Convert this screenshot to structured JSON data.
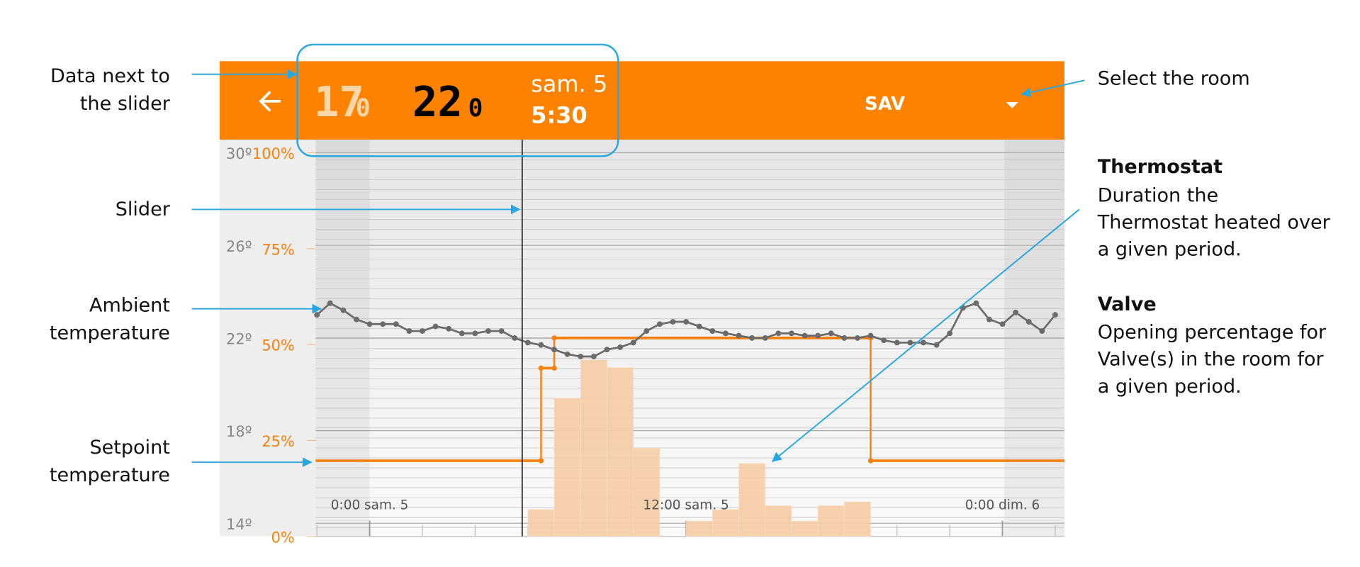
{
  "annotations_left": [
    {
      "lines": [
        "Data next to",
        "the slider"
      ]
    },
    {
      "lines": [
        "Slider"
      ]
    },
    {
      "lines": [
        "Ambient",
        "temperature"
      ]
    },
    {
      "lines": [
        "Setpoint",
        "temperature"
      ]
    }
  ],
  "annotations_right": {
    "select_room": "Select the room",
    "thermostat": {
      "title": "Thermostat",
      "lines": [
        "Duration the",
        "Thermostat heated over",
        "a given period."
      ]
    },
    "valve": {
      "title": "Valve",
      "lines": [
        "Opening percentage for",
        "Valve(s) in the room for",
        "a given period."
      ]
    }
  },
  "header": {
    "setpoint_int": "17",
    "setpoint_dec": "0",
    "ambient_int": "22",
    "ambient_dec": "0",
    "day": "sam. 5",
    "time": "5:30",
    "room": "SAV"
  },
  "chart": {
    "xlim": [
      -2.05,
      26.35
    ],
    "xticks": [
      {
        "value": 0,
        "label": "0:00 sam. 5"
      },
      {
        "value": 12,
        "label": "12:00 sam. 5"
      },
      {
        "value": 24,
        "label": "0:00 dim. 6"
      }
    ],
    "temp_lim": [
      14,
      30
    ],
    "temp_ticks": [
      {
        "value": 30,
        "label": "30º"
      },
      {
        "value": 26,
        "label": "26º"
      },
      {
        "value": 22,
        "label": "22º"
      },
      {
        "value": 18,
        "label": "18º"
      },
      {
        "value": 14,
        "label": "14º"
      }
    ],
    "percent_lim": [
      0,
      100
    ],
    "percent_ticks": [
      {
        "value": 100,
        "label": "100%"
      },
      {
        "value": 75,
        "label": "75%"
      },
      {
        "value": 50,
        "label": "50%"
      },
      {
        "value": 25,
        "label": "25%"
      },
      {
        "value": 0,
        "label": "0%"
      }
    ],
    "ambient": {
      "color": "#6b6b6b",
      "x": [
        -2,
        -1.5,
        -1,
        -0.5,
        0,
        0.5,
        1,
        1.5,
        2,
        2.5,
        3,
        3.5,
        4,
        4.5,
        5,
        5.5,
        6,
        6.5,
        7,
        7.5,
        8,
        8.5,
        9,
        9.5,
        10,
        10.5,
        11,
        11.5,
        12,
        12.5,
        13,
        13.5,
        14,
        14.5,
        15,
        15.5,
        16,
        16.5,
        17,
        17.5,
        18,
        18.5,
        19,
        19.5,
        20,
        20.5,
        21,
        21.5,
        22,
        22.5,
        23,
        23.5,
        24,
        24.5,
        25,
        25.5,
        26
      ],
      "values": [
        23.0,
        23.5,
        23.2,
        22.8,
        22.6,
        22.6,
        22.6,
        22.3,
        22.3,
        22.5,
        22.4,
        22.2,
        22.2,
        22.3,
        22.3,
        22.0,
        21.8,
        21.7,
        21.5,
        21.3,
        21.2,
        21.2,
        21.5,
        21.6,
        21.8,
        22.3,
        22.6,
        22.7,
        22.7,
        22.5,
        22.3,
        22.2,
        22.1,
        22.0,
        22.0,
        22.2,
        22.2,
        22.1,
        22.1,
        22.2,
        22.0,
        22.0,
        22.1,
        21.9,
        21.8,
        21.8,
        21.8,
        21.7,
        22.2,
        23.3,
        23.5,
        22.8,
        22.6,
        23.1,
        22.7,
        22.3,
        23.0
      ]
    },
    "setpoint": {
      "color": "#f5820f",
      "x": [
        -2.05,
        6.5,
        7.0,
        19.0
      ],
      "values": [
        16.7,
        20.7,
        22.0,
        16.7
      ]
    },
    "valve": {
      "color": "#f7cda6",
      "start": [
        6,
        7,
        8,
        9,
        10,
        12,
        13,
        14,
        15,
        16,
        17,
        18
      ],
      "end": [
        7,
        8,
        9,
        10,
        11,
        13,
        14,
        15,
        16,
        17,
        18,
        19
      ],
      "values": [
        7,
        36,
        46,
        44,
        23,
        4,
        7,
        19,
        8,
        4,
        8,
        9
      ]
    }
  }
}
